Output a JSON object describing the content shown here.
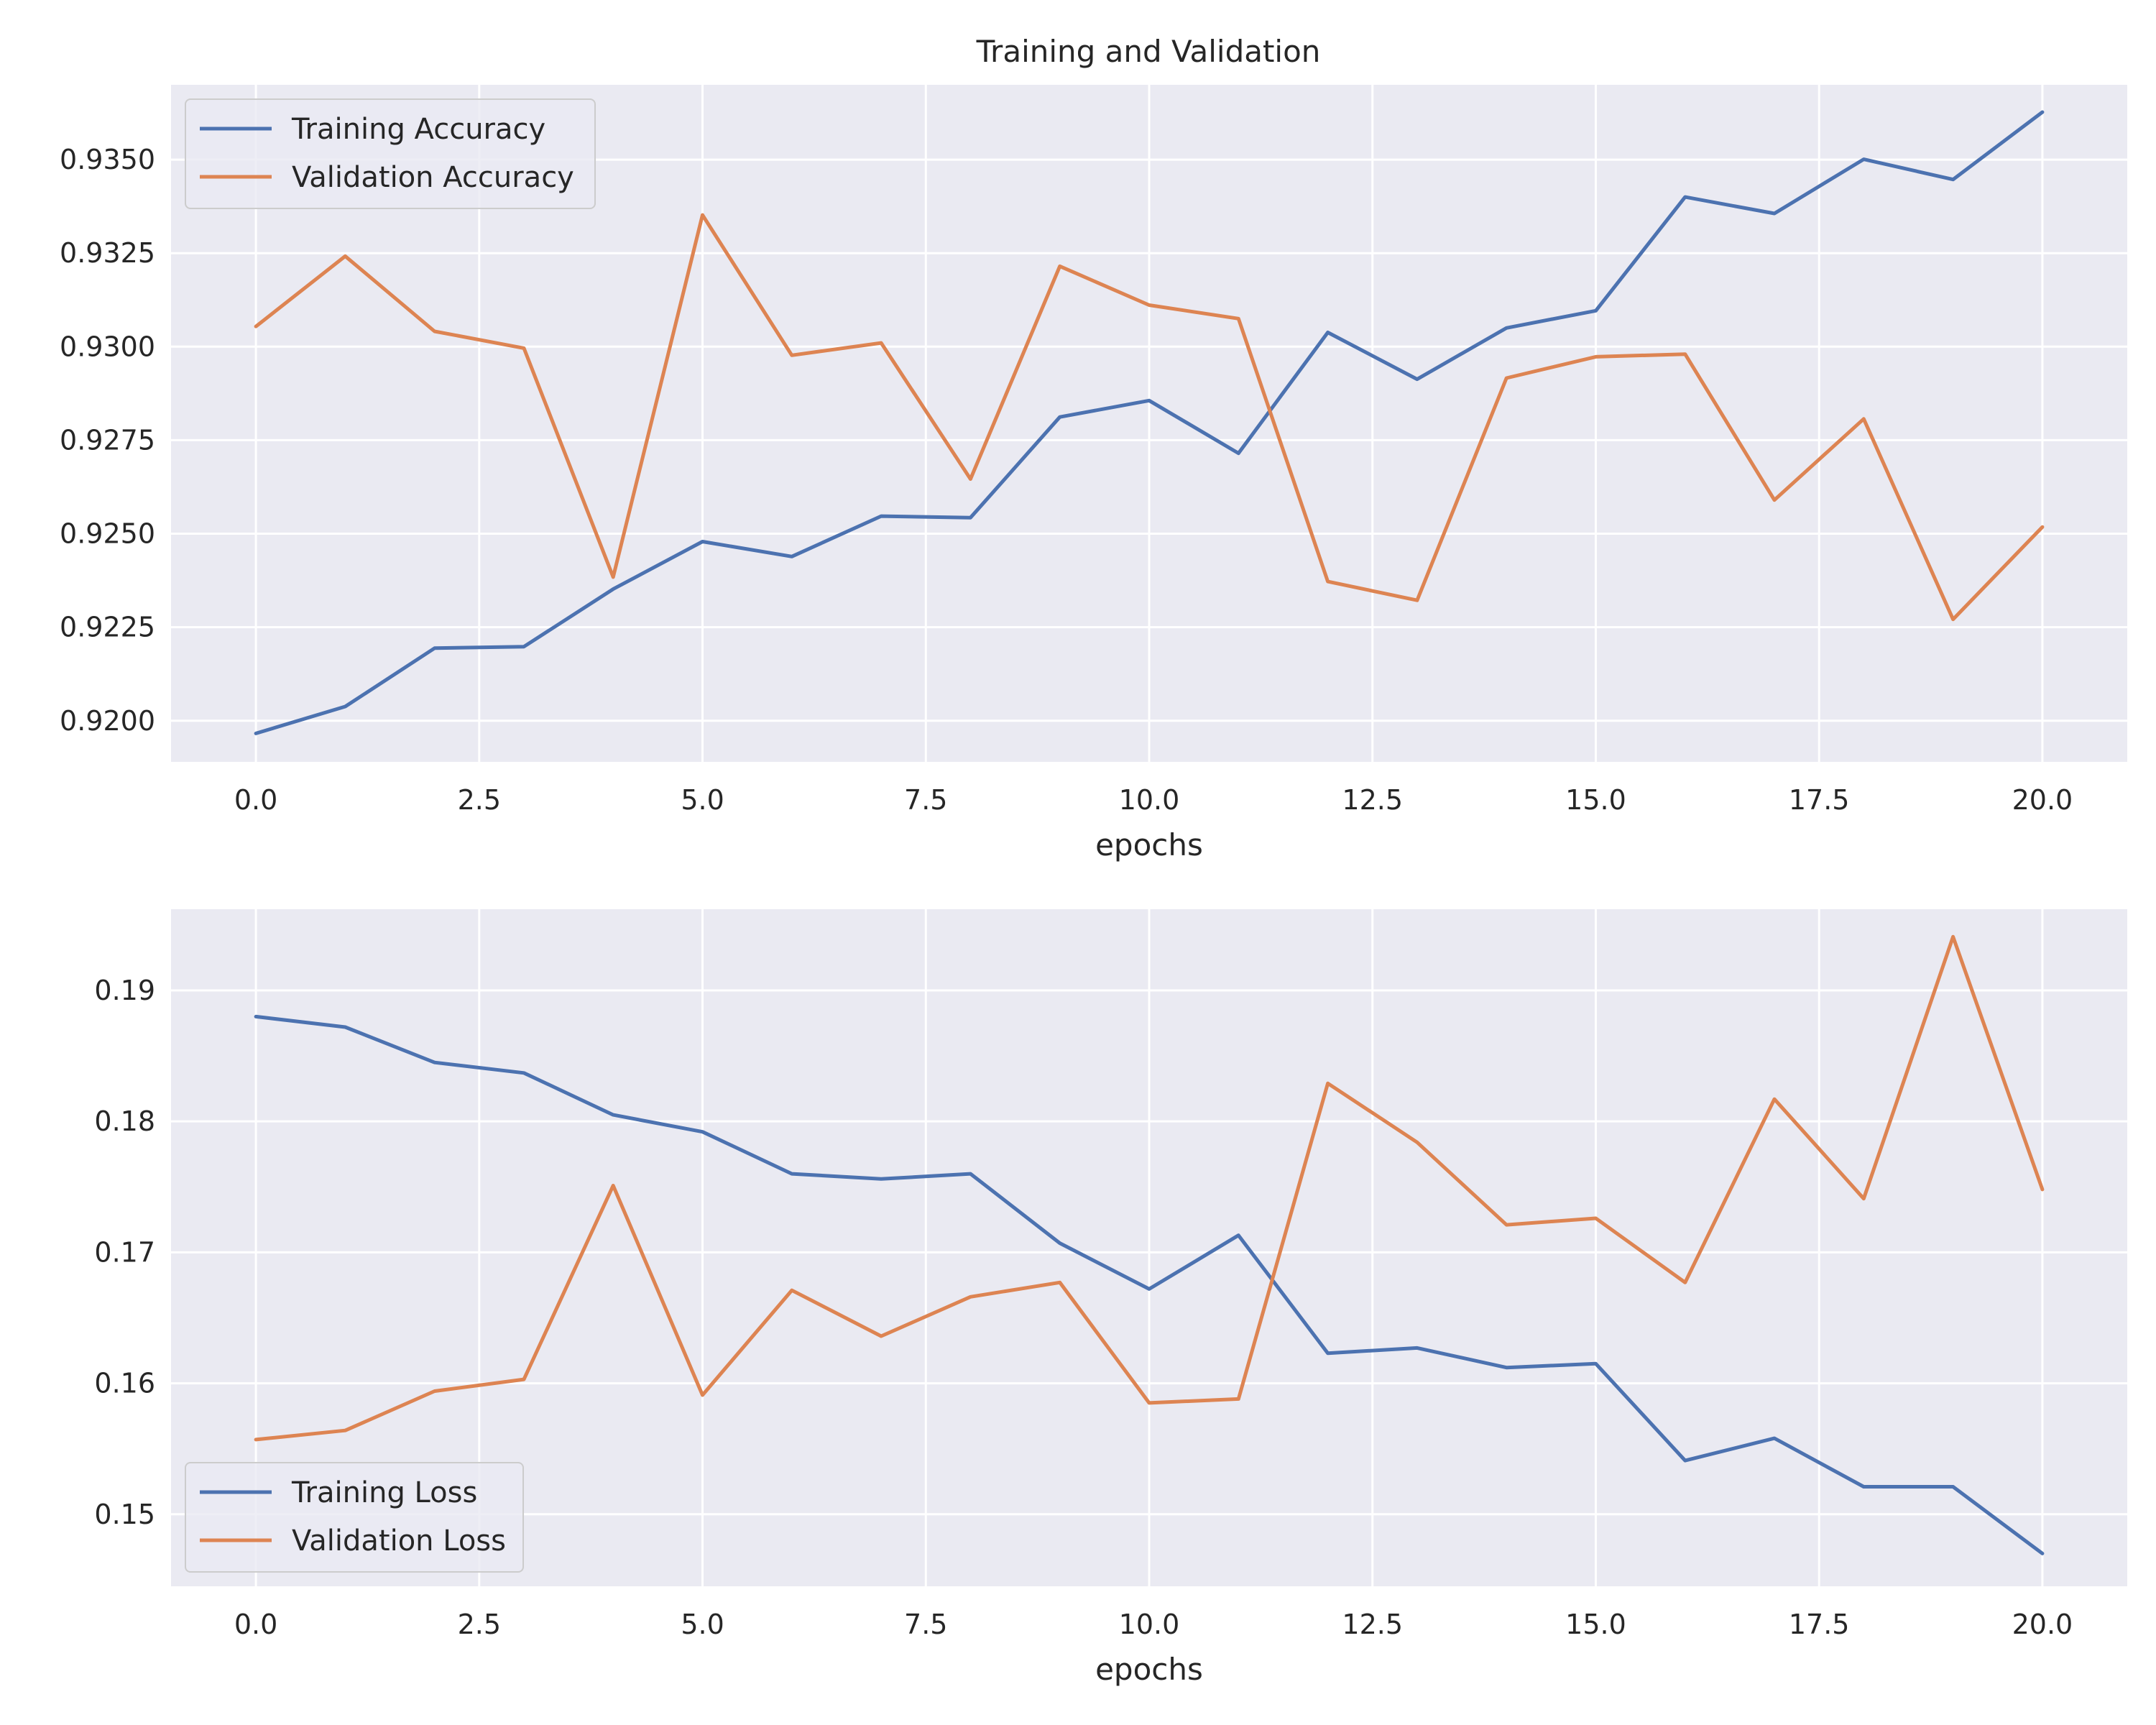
{
  "figure": {
    "title": "Training and Validation"
  },
  "chart_data": [
    {
      "type": "line",
      "title": "Training and Validation",
      "xlabel": "epochs",
      "ylabel": "",
      "x": [
        0,
        1,
        2,
        3,
        4,
        5,
        6,
        7,
        8,
        9,
        10,
        11,
        12,
        13,
        14,
        15,
        16,
        17,
        18,
        19,
        20
      ],
      "xlim": [
        -0.95,
        20.95
      ],
      "ylim": [
        0.9189,
        0.937
      ],
      "xticks": [
        0.0,
        2.5,
        5.0,
        7.5,
        10.0,
        12.5,
        15.0,
        17.5,
        20.0
      ],
      "xtick_labels": [
        "0.0",
        "2.5",
        "5.0",
        "7.5",
        "10.0",
        "12.5",
        "15.0",
        "17.5",
        "20.0"
      ],
      "yticks": [
        0.92,
        0.9225,
        0.925,
        0.9275,
        0.93,
        0.9325,
        0.935
      ],
      "ytick_labels": [
        "0.9200",
        "0.9225",
        "0.9250",
        "0.9275",
        "0.9300",
        "0.9325",
        "0.9350"
      ],
      "grid": true,
      "legend_position": "top-left",
      "series": [
        {
          "name": "Training Accuracy",
          "color": "#4c72b0",
          "values": [
            0.91966,
            0.92038,
            0.92194,
            0.92198,
            0.92352,
            0.92479,
            0.92439,
            0.92547,
            0.92543,
            0.92812,
            0.92856,
            0.92715,
            0.93038,
            0.92913,
            0.9305,
            0.93096,
            0.934,
            0.93356,
            0.93501,
            0.93447,
            0.93627
          ]
        },
        {
          "name": "Validation Accuracy",
          "color": "#dd8452",
          "values": [
            0.93054,
            0.93242,
            0.93041,
            0.92996,
            0.92384,
            0.93352,
            0.92977,
            0.9301,
            0.92646,
            0.93215,
            0.93111,
            0.93075,
            0.92372,
            0.92322,
            0.92916,
            0.92973,
            0.9298,
            0.9259,
            0.92807,
            0.92271,
            0.92518
          ]
        }
      ]
    },
    {
      "type": "line",
      "title": "",
      "xlabel": "epochs",
      "ylabel": "",
      "x": [
        0,
        1,
        2,
        3,
        4,
        5,
        6,
        7,
        8,
        9,
        10,
        11,
        12,
        13,
        14,
        15,
        16,
        17,
        18,
        19,
        20
      ],
      "xlim": [
        -0.95,
        20.95
      ],
      "ylim": [
        0.1445,
        0.1962
      ],
      "xticks": [
        0.0,
        2.5,
        5.0,
        7.5,
        10.0,
        12.5,
        15.0,
        17.5,
        20.0
      ],
      "xtick_labels": [
        "0.0",
        "2.5",
        "5.0",
        "7.5",
        "10.0",
        "12.5",
        "15.0",
        "17.5",
        "20.0"
      ],
      "yticks": [
        0.15,
        0.16,
        0.17,
        0.18,
        0.19
      ],
      "ytick_labels": [
        "0.15",
        "0.16",
        "0.17",
        "0.18",
        "0.19"
      ],
      "grid": true,
      "legend_position": "bottom-left",
      "series": [
        {
          "name": "Training Loss",
          "color": "#4c72b0",
          "values": [
            0.188,
            0.1872,
            0.1845,
            0.1837,
            0.1805,
            0.1792,
            0.176,
            0.1756,
            0.176,
            0.1707,
            0.1672,
            0.1713,
            0.1623,
            0.1627,
            0.1612,
            0.1615,
            0.1541,
            0.1558,
            0.1521,
            0.1521,
            0.147
          ]
        },
        {
          "name": "Validation Loss",
          "color": "#dd8452",
          "values": [
            0.1557,
            0.1564,
            0.1594,
            0.1603,
            0.1751,
            0.1591,
            0.1671,
            0.1636,
            0.1666,
            0.1677,
            0.1585,
            0.1588,
            0.1829,
            0.1784,
            0.1721,
            0.1726,
            0.1677,
            0.1817,
            0.1741,
            0.1941,
            0.1748
          ]
        }
      ]
    }
  ]
}
